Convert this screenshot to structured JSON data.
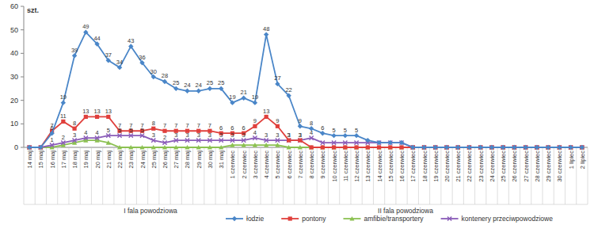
{
  "chart_data": {
    "type": "line",
    "y_label": "szt.",
    "categories": [
      "14 maj",
      "15 maj",
      "16 maj",
      "17 maj",
      "18 maj",
      "19 maj",
      "20 maj",
      "21 maj",
      "22 maj",
      "23 maj",
      "24 maj",
      "25 maj",
      "26 maj",
      "27 maj",
      "28 maj",
      "29 maj",
      "30 maj",
      "31 maj",
      "1 czerwiec",
      "2 czerwiec",
      "3 czerwiec",
      "4 czerwiec",
      "5 czerwiec",
      "6 czerwiec",
      "7 czerwiec",
      "8 czerwiec",
      "9 czerwiec",
      "10 czerwiec",
      "11 czerwiec",
      "12 czerwiec",
      "13 czerwiec",
      "14 czerwiec",
      "15 czerwiec",
      "16 czerwiec",
      "17 czerwiec",
      "18 czerwiec",
      "19 czerwiec",
      "20 czerwiec",
      "21 czerwiec",
      "22 czerwiec",
      "23 czerwiec",
      "24 czerwiec",
      "25 czerwiec",
      "26 czerwiec",
      "27 czerwiec",
      "28 czerwiec",
      "29 czerwiec",
      "30 czerwiec",
      "1 lipiec",
      "2 lipiec"
    ],
    "annotations": [
      "I fala powodziowa",
      "II fala powodziowa"
    ],
    "series": [
      {
        "name": "łodzie",
        "color": "#4a86c8",
        "marker": "diamond",
        "values": [
          0,
          0,
          6,
          19,
          39,
          49,
          44,
          37,
          34,
          43,
          36,
          30,
          28,
          25,
          24,
          24,
          25,
          25,
          19,
          21,
          19,
          48,
          27,
          22,
          9,
          8,
          6,
          5,
          5,
          5,
          3,
          2,
          2,
          2,
          0,
          0,
          0,
          0,
          0,
          0,
          0,
          0,
          0,
          0,
          0,
          0,
          0,
          0,
          0,
          0
        ],
        "value_labels": [
          null,
          null,
          "6",
          "19",
          "39",
          "49",
          "44",
          "37",
          "34",
          "43",
          "36",
          "30",
          "28",
          "25",
          "24",
          "24",
          "25",
          "25",
          "19",
          "21",
          "19",
          "48",
          "27",
          "22",
          "9",
          "8",
          "6",
          "5",
          "5",
          "5",
          null,
          null,
          null,
          null,
          null,
          null,
          null,
          null,
          null,
          null,
          null,
          null,
          null,
          null,
          null,
          null,
          null,
          null,
          null,
          null
        ]
      },
      {
        "name": "pontony",
        "color": "#e0403c",
        "marker": "square",
        "values": [
          0,
          0,
          7,
          11,
          8,
          13,
          13,
          13,
          7,
          7,
          7,
          8,
          7,
          7,
          7,
          7,
          7,
          6,
          6,
          6,
          9,
          13,
          9,
          3,
          3,
          0,
          0,
          0,
          0,
          0,
          0,
          0,
          0,
          0,
          0,
          0,
          0,
          0,
          0,
          0,
          0,
          0,
          0,
          0,
          0,
          0,
          0,
          0,
          0,
          0
        ],
        "value_labels": [
          null,
          null,
          "7",
          "11",
          "8",
          "13",
          "13",
          "13",
          "7",
          "7",
          "7",
          "8",
          "7",
          "7",
          "7",
          "7",
          "7",
          "6",
          "6",
          "6",
          "9",
          "13",
          "9",
          "3",
          "3",
          null,
          null,
          null,
          null,
          null,
          null,
          null,
          null,
          null,
          null,
          null,
          null,
          null,
          null,
          null,
          null,
          null,
          null,
          null,
          null,
          null,
          null,
          null,
          null,
          null
        ]
      },
      {
        "name": "amfibie/transportery",
        "color": "#8cc152",
        "marker": "triangle",
        "values": [
          0,
          0,
          0,
          1,
          2,
          3,
          3,
          2,
          0,
          0,
          0,
          0,
          0,
          0,
          0,
          0,
          0,
          0,
          1,
          1,
          1,
          1,
          1,
          0,
          0,
          0,
          0,
          0,
          0,
          0,
          0,
          0,
          0,
          0,
          0,
          0,
          0,
          0,
          0,
          0,
          0,
          0,
          0,
          0,
          0,
          0,
          0,
          0,
          0,
          0
        ]
      },
      {
        "name": "kontenery przeciwpowodziowe",
        "color": "#8a5cb8",
        "marker": "x",
        "values": [
          0,
          0,
          1,
          2,
          3,
          4,
          4,
          5,
          5,
          5,
          5,
          3,
          2,
          3,
          3,
          3,
          3,
          3,
          3,
          3,
          4,
          3,
          3,
          3,
          3,
          4,
          2,
          2,
          2,
          2,
          2,
          2,
          2,
          2,
          0,
          0,
          0,
          0,
          0,
          0,
          0,
          0,
          0,
          0,
          0,
          0,
          0,
          0,
          0,
          0
        ],
        "value_labels": [
          null,
          null,
          "1",
          "2",
          "3",
          "4",
          "4",
          "5",
          "5",
          "5",
          "5",
          "3",
          "2",
          "3",
          "3",
          "3",
          "3",
          "3",
          "3",
          "3",
          "4",
          "3",
          "3",
          "3",
          "3",
          "4",
          null,
          null,
          null,
          null,
          null,
          null,
          null,
          null,
          null,
          null,
          null,
          null,
          null,
          null,
          null,
          null,
          null,
          null,
          null,
          null,
          null,
          null,
          null,
          null
        ]
      }
    ],
    "ylim": [
      0,
      60
    ],
    "yticks": [
      0,
      10,
      20,
      30,
      40,
      50,
      60
    ],
    "grid": false,
    "legend": "bottom",
    "data_labels": true
  }
}
